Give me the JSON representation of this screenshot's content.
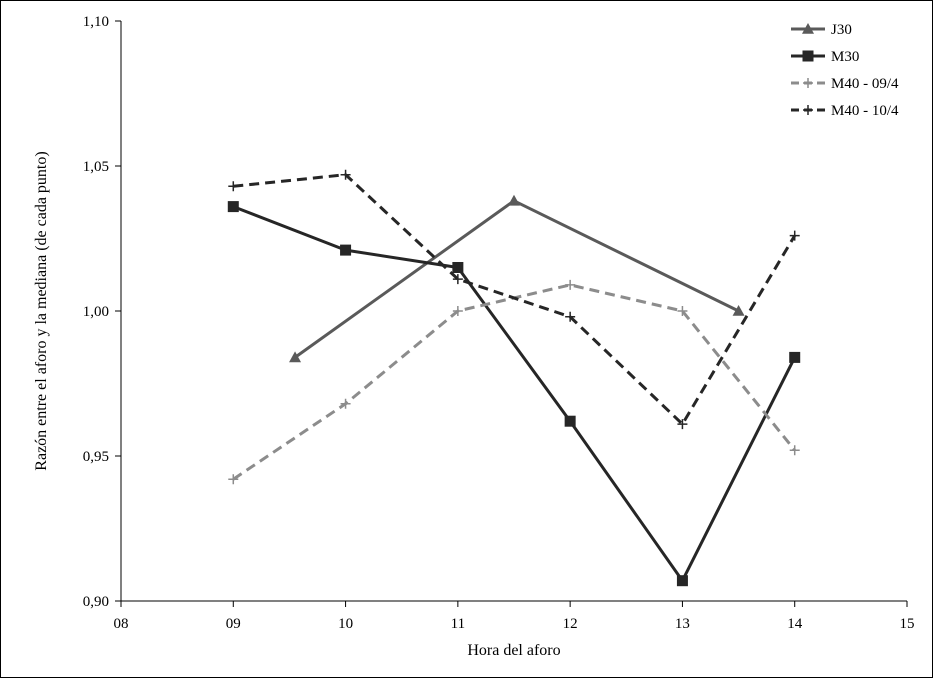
{
  "chart_data": {
    "type": "line",
    "xlabel": "Hora del aforo",
    "ylabel": "Razón entre el aforo y la mediana (de cada punto)",
    "xlim": [
      8,
      15
    ],
    "ylim": [
      0.9,
      1.1
    ],
    "x_ticks": [
      8,
      9,
      10,
      11,
      12,
      13,
      14,
      15
    ],
    "x_tick_labels": [
      "08",
      "09",
      "10",
      "11",
      "12",
      "13",
      "14",
      "15"
    ],
    "y_ticks": [
      0.9,
      0.95,
      1.0,
      1.05,
      1.1
    ],
    "y_tick_labels": [
      "0,90",
      "0,95",
      "1,00",
      "1,05",
      "1,10"
    ],
    "grid": false,
    "legend_position": "top-right",
    "series": [
      {
        "name": "J30",
        "color": "#5a5a5a",
        "dash": "solid",
        "marker": "triangle",
        "x": [
          9.55,
          11.5,
          13.5
        ],
        "y": [
          0.984,
          1.038,
          1.0
        ]
      },
      {
        "name": "M30",
        "color": "#262626",
        "dash": "solid",
        "marker": "square",
        "x": [
          9,
          10,
          11,
          12,
          13,
          14
        ],
        "y": [
          1.036,
          1.021,
          1.015,
          0.962,
          0.907,
          0.984
        ]
      },
      {
        "name": "M40 - 09/4",
        "color": "#8c8c8c",
        "dash": "dashed",
        "marker": "plus",
        "x": [
          9,
          10,
          11,
          12,
          13,
          14
        ],
        "y": [
          0.942,
          0.968,
          1.0,
          1.009,
          1.0,
          0.952
        ]
      },
      {
        "name": "M40 - 10/4",
        "color": "#262626",
        "dash": "dashed",
        "marker": "plus",
        "x": [
          9,
          10,
          11,
          12,
          13,
          14
        ],
        "y": [
          1.043,
          1.047,
          1.011,
          0.998,
          0.961,
          1.026
        ]
      }
    ]
  }
}
